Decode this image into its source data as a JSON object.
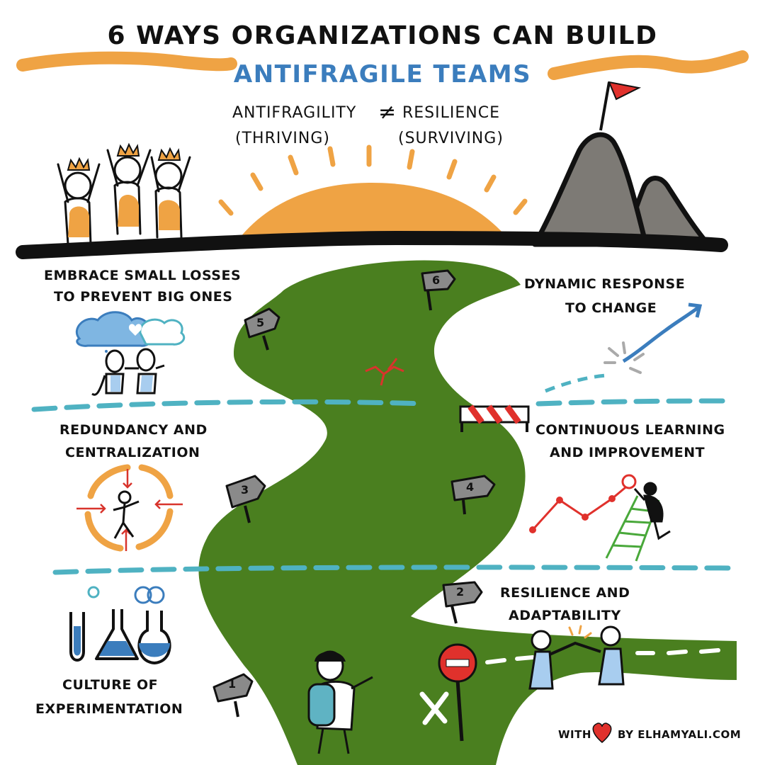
{
  "header": {
    "title_line1": "6 WAYS ORGANIZATIONS CAN BUILD",
    "title_line2": "ANTIFRAGILE TEAMS"
  },
  "subtitle": {
    "left_line1": "ANTIFRAGILITY",
    "inequality": "≠",
    "right_line1": "RESILIENCE",
    "left_line2": "(THRIVING)",
    "right_line2": "(SURVIVING)"
  },
  "ways": {
    "way1": {
      "number": "1",
      "line1": "CULTURE OF",
      "line2": "EXPERIMENTATION"
    },
    "way2": {
      "number": "2",
      "line1": "RESILIENCE AND",
      "line2": "ADAPTABILITY"
    },
    "way3": {
      "number": "3",
      "line1": "REDUNDANCY AND",
      "line2": "CENTRALIZATION"
    },
    "way4": {
      "number": "4",
      "line1": "CONTINUOUS LEARNING",
      "line2": "AND IMPROVEMENT"
    },
    "way5": {
      "number": "5",
      "line1": "EMBRACE SMALL LOSSES",
      "line2": "TO PREVENT BIG ONES"
    },
    "way6": {
      "number": "6",
      "line1": "DYNAMIC RESPONSE",
      "line2": "TO CHANGE"
    }
  },
  "footer": {
    "with": "WITH",
    "by": "BY ELHAMYALI.COM"
  },
  "colors": {
    "road": "#4a7f1f",
    "sun": "#efa344",
    "accent_blue": "#3b7dbd",
    "dash_teal": "#4fb2c2",
    "mountain": "#7d7a75",
    "flag_red": "#e0312c",
    "heart_red": "#e0312c"
  },
  "icons": {
    "summit": "mountain-flag-icon",
    "sun": "sunrise-icon",
    "lab": "lab-flasks-icon",
    "stop": "no-entry-sign-icon",
    "chart": "growth-chart-ladder-icon",
    "cycle": "centralization-cycle-icon",
    "clouds": "cloud-people-icon",
    "trend": "trend-arrow-icon"
  }
}
